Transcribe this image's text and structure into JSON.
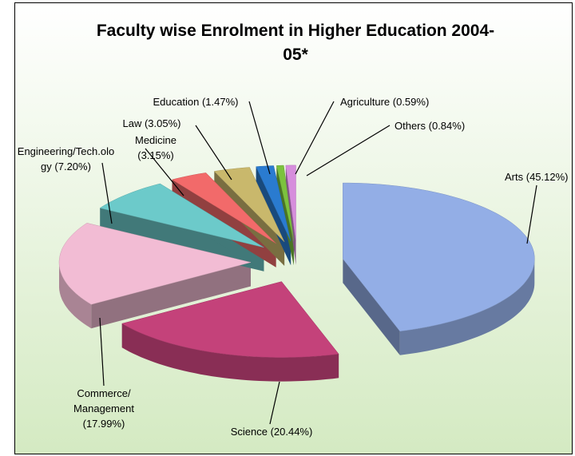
{
  "chart_data": {
    "type": "pie3d",
    "title": "Faculty wise Enrolment in Higher Education  2004-05*",
    "categories": [
      "Arts",
      "Science",
      "Commerce/ Management",
      "Engineering/Tech.ology",
      "Medicine",
      "Law",
      "Education",
      "Agriculture",
      "Others"
    ],
    "values": [
      45.12,
      20.44,
      17.99,
      7.2,
      3.15,
      3.05,
      1.47,
      0.59,
      0.84
    ],
    "value_labels": [
      "(45.12%)",
      "(20.44%)",
      "(17.99%)",
      "(7.20%)",
      "(3.15%)",
      "(3.05%)",
      "(1.47%)",
      "(0.59%)",
      "(0.84%)"
    ],
    "colors": [
      "#93aee6",
      "#c4427a",
      "#f2bcd4",
      "#6ccaca",
      "#f26a6a",
      "#c9b86c",
      "#2a7bd0",
      "#7cc23e",
      "#d68edc"
    ]
  }
}
